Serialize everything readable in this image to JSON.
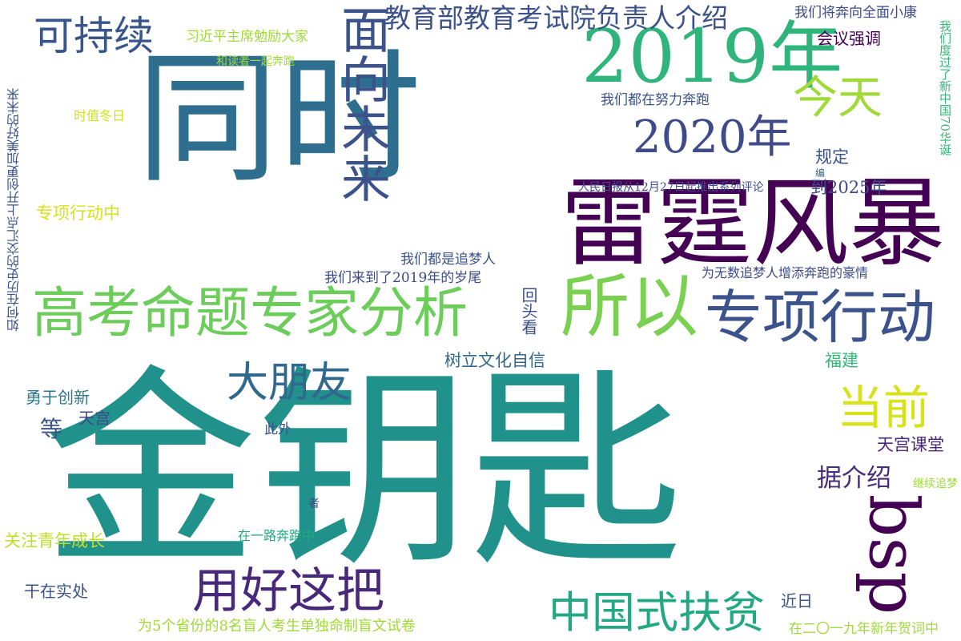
{
  "words": [
    {
      "text": "同时",
      "color": "#2e6e8e"
    },
    {
      "text": "金钥匙",
      "color": "#21918c"
    },
    {
      "text": "雷霆风暴",
      "color": "#440154"
    },
    {
      "text": "高考命题专家分析",
      "color": "#6ccd5a"
    },
    {
      "text": "所以",
      "color": "#7ad151"
    },
    {
      "text": "专项行动",
      "color": "#3b528b"
    },
    {
      "text": "2019年",
      "color": "#2fb47c"
    },
    {
      "text": "2020年",
      "color": "#3e4a89"
    },
    {
      "text": "面向未来",
      "color": "#3b528b"
    },
    {
      "text": "可持续",
      "color": "#39568c"
    },
    {
      "text": "今天",
      "color": "#a0da39"
    },
    {
      "text": "bsp",
      "color": "#440154"
    },
    {
      "text": "用好这把",
      "color": "#482878"
    },
    {
      "text": "中国式扶贫",
      "color": "#22a884"
    },
    {
      "text": "大朋友",
      "color": "#31688e"
    },
    {
      "text": "当前",
      "color": "#d8e219"
    },
    {
      "text": "教育部教育考试院负责人介绍",
      "color": "#3b528b"
    },
    {
      "text": "据介绍",
      "color": "#472d7b"
    },
    {
      "text": "会议强调",
      "color": "#440154"
    },
    {
      "text": "树立文化自信",
      "color": "#31688e"
    },
    {
      "text": "天宫课堂",
      "color": "#482878"
    },
    {
      "text": "规定",
      "color": "#3b528b"
    },
    {
      "text": "到2025年",
      "color": "#3e4a89"
    },
    {
      "text": "福建",
      "color": "#35b779"
    },
    {
      "text": "等",
      "color": "#3b528b"
    },
    {
      "text": "勇于创新",
      "color": "#2a788e"
    },
    {
      "text": "天宫",
      "color": "#3e4a89"
    },
    {
      "text": "干在实处",
      "color": "#3b528b"
    },
    {
      "text": "关注青年成长",
      "color": "#bddf26"
    },
    {
      "text": "专项行动中",
      "color": "#d8e219"
    },
    {
      "text": "时值冬日",
      "color": "#d0e11c"
    },
    {
      "text": "此外",
      "color": "#3b528b"
    },
    {
      "text": "近日",
      "color": "#3b528b"
    },
    {
      "text": "回头看",
      "color": "#3b528b"
    },
    {
      "text": "习近平主席勉励大家",
      "color": "#a0da39"
    },
    {
      "text": "和读者一起奔跑",
      "color": "#a0da39"
    },
    {
      "text": "我们都在努力奔跑",
      "color": "#3b528b"
    },
    {
      "text": "我们将奔向全面小康",
      "color": "#3e4a89"
    },
    {
      "text": "人民日报从12月27日起推出系列评论",
      "color": "#3e4a89"
    },
    {
      "text": "编",
      "color": "#31688e"
    },
    {
      "text": "我们都是追梦人",
      "color": "#3b528b"
    },
    {
      "text": "我们来到了2019年的岁尾",
      "color": "#3e4a89"
    },
    {
      "text": "为无数追梦人增添奔跑的豪情",
      "color": "#3e4a89"
    },
    {
      "text": "在一路奔跑中",
      "color": "#22a884"
    },
    {
      "text": "者",
      "color": "#3e4a89"
    },
    {
      "text": "继续追梦",
      "color": "#a0da39"
    },
    {
      "text": "为5个省份的8名盲人考生单独命制盲文试卷",
      "color": "#a0da39"
    },
    {
      "text": "在二〇一九年新年贺词中",
      "color": "#a0da39"
    },
    {
      "text": "我们度过了新中国70华诞",
      "color": "#35b779"
    },
    {
      "text": "如何在历史的交汇点上开创更加美好的未来",
      "color": "#3b528b"
    }
  ]
}
